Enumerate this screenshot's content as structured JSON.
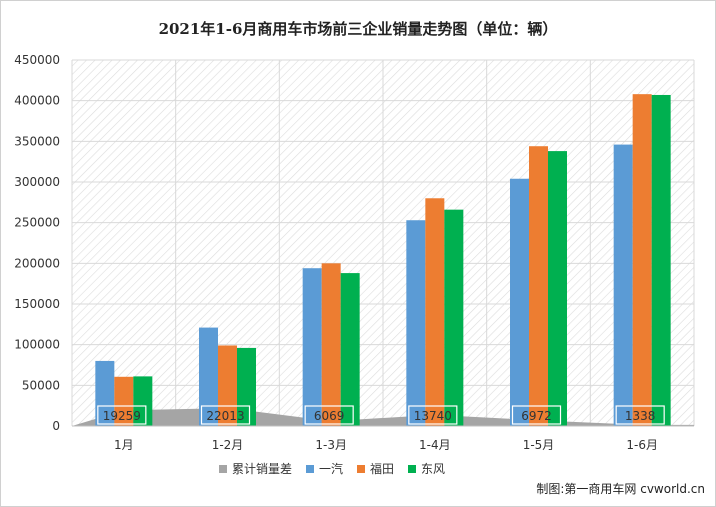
{
  "chart_data": {
    "type": "bar",
    "title": "2021年1-6月商用车市场前三企业销量走势图（单位：辆）",
    "categories": [
      "1月",
      "1-2月",
      "1-3月",
      "1-4月",
      "1-5月",
      "1-6月"
    ],
    "ylim": [
      0,
      450000
    ],
    "yticks": [
      0,
      50000,
      100000,
      150000,
      200000,
      250000,
      300000,
      350000,
      400000,
      450000
    ],
    "grid": true,
    "legend_position": "bottom",
    "series": [
      {
        "name": "累计销量差",
        "kind": "area",
        "color": "#a5a5a5",
        "values": [
          19259,
          22013,
          6069,
          13740,
          6972,
          1338
        ]
      },
      {
        "name": "一汽",
        "kind": "bar",
        "color": "#5b9bd5",
        "values": [
          80000,
          121000,
          194000,
          253000,
          304000,
          346000
        ]
      },
      {
        "name": "福田",
        "kind": "bar",
        "color": "#ed7d31",
        "values": [
          60500,
          99000,
          200000,
          280000,
          344000,
          408000
        ]
      },
      {
        "name": "东风",
        "kind": "bar",
        "color": "#00b050",
        "values": [
          61000,
          96000,
          188000,
          266000,
          338000,
          407000
        ]
      }
    ],
    "data_labels": [
      "19259",
      "22013",
      "6069",
      "13740",
      "6972",
      "1338"
    ]
  },
  "credit": "制图:第一商用车网 cvworld.cn"
}
